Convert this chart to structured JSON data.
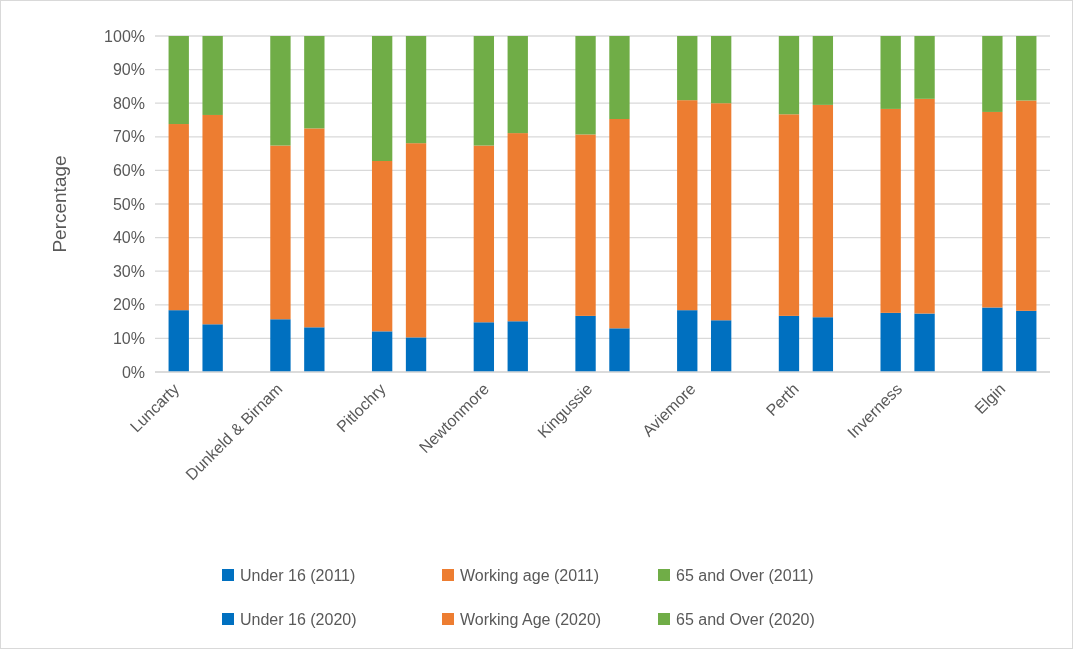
{
  "chart_data": {
    "type": "bar",
    "stacked": true,
    "ylabel": "Percentage",
    "categories": [
      "Luncarty",
      null,
      null,
      "Dunkeld & Birnam",
      null,
      null,
      "Pitlochry",
      null,
      null,
      "Newtonmore",
      null,
      null,
      "Kingussie",
      null,
      null,
      "Aviemore",
      null,
      null,
      "Perth",
      null,
      null,
      "Inverness",
      null,
      null,
      "Elgin",
      null
    ],
    "ylim": [
      0,
      100
    ],
    "yticks": [
      {
        "value": 0,
        "label": "0%"
      },
      {
        "value": 10,
        "label": "10%"
      },
      {
        "value": 20,
        "label": "20%"
      },
      {
        "value": 30,
        "label": "30%"
      },
      {
        "value": 40,
        "label": "40%"
      },
      {
        "value": 50,
        "label": "50%"
      },
      {
        "value": 60,
        "label": "60%"
      },
      {
        "value": 70,
        "label": "70%"
      },
      {
        "value": 80,
        "label": "80%"
      },
      {
        "value": 90,
        "label": "90%"
      },
      {
        "value": 100,
        "label": "100%"
      }
    ],
    "grid": "y",
    "legend": "bottom",
    "series": [
      {
        "name": "Under 16 (2011)",
        "color": "#0070c0",
        "values": [
          18.4,
          null,
          null,
          15.7,
          null,
          null,
          12.1,
          null,
          null,
          14.8,
          null,
          null,
          16.7,
          null,
          null,
          18.4,
          null,
          null,
          16.7,
          null,
          null,
          17.6,
          null,
          null,
          19.2,
          null
        ]
      },
      {
        "name": "Working age (2011)",
        "color": "#ed7d31",
        "values": [
          55.4,
          null,
          null,
          51.7,
          null,
          null,
          50.7,
          null,
          null,
          52.6,
          null,
          null,
          54.0,
          null,
          null,
          62.5,
          null,
          null,
          60.0,
          null,
          null,
          60.7,
          null,
          null,
          58.2,
          null
        ]
      },
      {
        "name": "65 and Over (2011)",
        "color": "#70ad47",
        "values": [
          26.2,
          null,
          null,
          32.6,
          null,
          null,
          37.2,
          null,
          null,
          32.6,
          null,
          null,
          29.3,
          null,
          null,
          19.1,
          null,
          null,
          23.3,
          null,
          null,
          21.7,
          null,
          null,
          22.6,
          null
        ]
      },
      {
        "name": "Under 16 (2020)",
        "color": "#0070c0",
        "values": [
          null,
          14.2,
          null,
          null,
          13.3,
          null,
          null,
          10.3,
          null,
          null,
          15.1,
          null,
          null,
          13.0,
          null,
          null,
          15.4,
          null,
          null,
          16.3,
          null,
          null,
          17.4,
          null,
          null,
          18.2
        ]
      },
      {
        "name": "Working Age (2020)",
        "color": "#ed7d31",
        "values": [
          null,
          62.3,
          null,
          null,
          59.2,
          null,
          null,
          57.8,
          null,
          null,
          56.0,
          null,
          null,
          62.3,
          null,
          null,
          64.6,
          null,
          null,
          63.2,
          null,
          null,
          63.9,
          null,
          null,
          62.6
        ]
      },
      {
        "name": "65 and Over (2020)",
        "color": "#70ad47",
        "values": [
          null,
          23.5,
          null,
          null,
          27.5,
          null,
          null,
          31.9,
          null,
          null,
          28.9,
          null,
          null,
          24.7,
          null,
          null,
          20.0,
          null,
          null,
          20.5,
          null,
          null,
          18.7,
          null,
          null,
          19.2
        ]
      }
    ]
  }
}
